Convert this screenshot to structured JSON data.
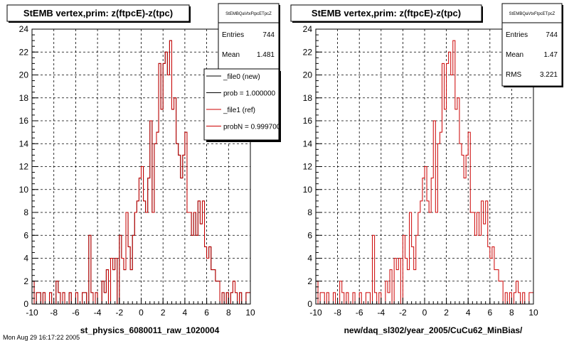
{
  "footer_text": "Mon Aug 29 16:17:22 2005",
  "chart_data": [
    {
      "type": "histogram",
      "title": "StEMB  vertex,prim: z(ftpcE)-z(tpc)",
      "xlabel": "st_physics_6080011_raw_1020004",
      "xlim": [
        -10,
        10
      ],
      "ylim": [
        0,
        24
      ],
      "x_ticks": [
        -10,
        -8,
        -6,
        -4,
        -2,
        0,
        2,
        4,
        6,
        8,
        10
      ],
      "y_ticks": [
        0,
        2,
        4,
        6,
        8,
        10,
        12,
        14,
        16,
        18,
        20,
        22,
        24
      ],
      "grid": true,
      "bin_edges_start": -10,
      "bin_width": 0.2,
      "values": [
        2,
        0,
        1,
        1,
        0,
        1,
        0,
        0,
        1,
        0,
        0,
        2,
        1,
        0,
        1,
        0,
        0,
        1,
        0,
        0,
        1,
        0,
        0,
        1,
        1,
        0,
        6,
        1,
        0,
        1,
        0,
        0,
        2,
        1,
        3,
        0,
        4,
        3,
        4,
        0,
        6,
        4,
        3,
        8,
        5,
        3,
        6,
        8,
        9,
        11,
        12,
        9,
        8,
        11,
        16,
        8,
        14,
        15,
        21,
        17,
        21,
        22,
        20,
        23,
        17,
        18,
        14,
        13,
        11,
        13,
        15,
        8,
        8,
        6,
        8,
        6,
        9,
        7,
        9,
        5,
        4,
        5,
        3,
        3,
        2,
        2,
        0,
        1,
        0,
        1,
        0,
        1,
        2,
        1,
        0,
        1,
        0,
        0,
        1,
        1
      ],
      "series": [
        {
          "name": "_file0 (new)",
          "color": "#000000"
        },
        {
          "name": "_file1 (ref)",
          "color": "#cc0000"
        }
      ],
      "stats": {
        "name": "StEMBQaVtxFtpcETpcZ",
        "entries_label": "Entries",
        "entries": "744",
        "mean_label": "Mean",
        "mean": "1.481"
      },
      "legend": {
        "placement": "top-right",
        "entries": [
          {
            "label": "_file0 (new)",
            "color": "#000000"
          },
          {
            "label": "prob = 1.000000",
            "color": "#000000"
          },
          {
            "label": "_file1 (ref)",
            "color": "#cc0000"
          },
          {
            "label": "probN = 0.999700",
            "color": "#cc0000"
          }
        ]
      }
    },
    {
      "type": "histogram",
      "title": "StEMB  vertex,prim: z(ftpcE)-z(tpc)",
      "xlabel": "new/daq_sl302/year_2005/CuCu62_MinBias/",
      "xlim": [
        -10,
        10
      ],
      "ylim": [
        0,
        24
      ],
      "x_ticks": [
        -10,
        -8,
        -6,
        -4,
        -2,
        0,
        2,
        4,
        6,
        8,
        10
      ],
      "y_ticks": [
        0,
        2,
        4,
        6,
        8,
        10,
        12,
        14,
        16,
        18,
        20,
        22,
        24
      ],
      "grid": true,
      "bin_edges_start": -10,
      "bin_width": 0.2,
      "values": [
        2,
        0,
        1,
        1,
        0,
        1,
        0,
        0,
        1,
        0,
        0,
        2,
        1,
        0,
        1,
        0,
        0,
        1,
        0,
        0,
        1,
        0,
        0,
        1,
        1,
        0,
        6,
        1,
        0,
        1,
        0,
        0,
        2,
        1,
        3,
        0,
        4,
        3,
        4,
        0,
        6,
        4,
        3,
        8,
        5,
        3,
        6,
        8,
        9,
        11,
        12,
        9,
        8,
        11,
        16,
        8,
        14,
        15,
        21,
        17,
        21,
        22,
        20,
        23,
        17,
        18,
        14,
        13,
        11,
        13,
        15,
        8,
        8,
        6,
        8,
        6,
        9,
        7,
        9,
        5,
        4,
        5,
        3,
        3,
        2,
        2,
        0,
        1,
        0,
        1,
        0,
        1,
        2,
        1,
        0,
        1,
        0,
        0,
        1,
        1
      ],
      "series": [
        {
          "name": "",
          "color": "#cc0000"
        }
      ],
      "stats": {
        "name": "StEMBQaVtxFtpcETpcZ",
        "entries_label": "Entries",
        "entries": "744",
        "mean_label": "Mean",
        "mean": "1.47",
        "rms_label": "RMS",
        "rms": "3.221"
      }
    }
  ]
}
